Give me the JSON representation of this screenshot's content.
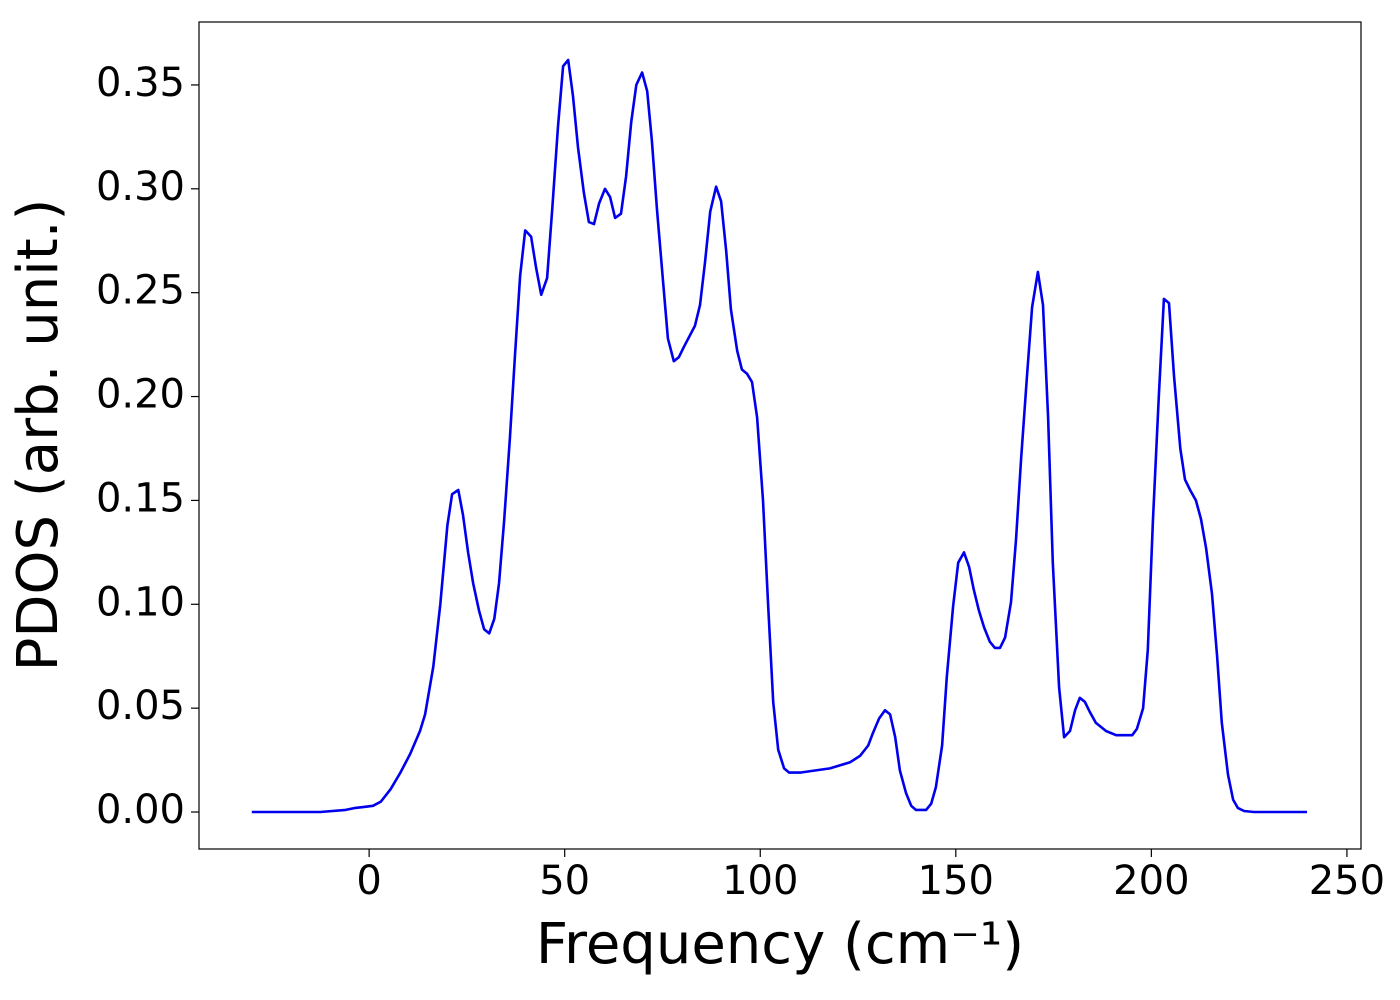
{
  "chart_data": {
    "type": "line",
    "xlabel": "Frequency (cm⁻¹)",
    "ylabel": "PDOS (arb. unit.)",
    "color": "#0000ee",
    "x": [
      -30,
      -12.5,
      -6,
      -3.5,
      -1,
      1,
      3,
      5.5,
      8,
      10.5,
      13,
      14.3,
      16.4,
      18.2,
      20,
      21.2,
      22.8,
      24,
      25.3,
      26.6,
      28.1,
      29.4,
      30.7,
      32,
      33.2,
      34.5,
      36,
      37.3,
      38.6,
      39.9,
      41.4,
      42.7,
      44,
      45.5,
      46.8,
      48.3,
      49.6,
      50.9,
      52.1,
      53.4,
      54.9,
      56.2,
      57.5,
      58.8,
      60.3,
      61.6,
      62.9,
      64.4,
      65.7,
      67,
      68.3,
      69.8,
      71.1,
      72.3,
      73.6,
      75.2,
      76.4,
      77.9,
      79.2,
      80.5,
      83.3,
      84.6,
      85.9,
      87.2,
      88.7,
      90,
      91.3,
      92.5,
      94.1,
      95.3,
      96.6,
      97.9,
      99.2,
      100.7,
      102,
      103.3,
      104.6,
      106.1,
      107.4,
      110.2,
      117.8,
      123,
      125.5,
      127.6,
      128.8,
      130.4,
      131.9,
      133.2,
      134.5,
      135.7,
      137.3,
      138.6,
      139.8,
      142.4,
      143.7,
      144.9,
      146.5,
      147.7,
      149.3,
      150.6,
      152.1,
      153.4,
      154.6,
      155.9,
      157.2,
      158.7,
      160,
      161.3,
      162.6,
      164.1,
      165.4,
      166.7,
      168.2,
      169.5,
      171,
      172.3,
      173.6,
      174.8,
      176.4,
      177.7,
      179.2,
      180.5,
      181.7,
      183,
      184.3,
      185.8,
      188.4,
      191,
      193.5,
      195.1,
      196.3,
      197.9,
      199.1,
      200.4,
      201.9,
      203.2,
      204.5,
      205.8,
      207.4,
      208.6,
      209.9,
      211.4,
      212.7,
      214,
      215.5,
      216.8,
      218,
      219.6,
      220.9,
      222.1,
      223.7,
      226.2,
      239.8
    ],
    "values": [
      0,
      0,
      0.001,
      0.002,
      0.0025,
      0.003,
      0.005,
      0.011,
      0.019,
      0.028,
      0.039,
      0.047,
      0.07,
      0.1,
      0.138,
      0.153,
      0.155,
      0.143,
      0.125,
      0.11,
      0.097,
      0.088,
      0.086,
      0.093,
      0.11,
      0.14,
      0.18,
      0.22,
      0.258,
      0.28,
      0.277,
      0.262,
      0.249,
      0.257,
      0.29,
      0.33,
      0.359,
      0.362,
      0.345,
      0.32,
      0.298,
      0.284,
      0.283,
      0.293,
      0.3,
      0.296,
      0.286,
      0.288,
      0.306,
      0.332,
      0.35,
      0.356,
      0.347,
      0.323,
      0.29,
      0.254,
      0.228,
      0.217,
      0.219,
      0.224,
      0.234,
      0.244,
      0.265,
      0.289,
      0.301,
      0.294,
      0.27,
      0.242,
      0.222,
      0.213,
      0.211,
      0.207,
      0.19,
      0.15,
      0.1,
      0.053,
      0.03,
      0.021,
      0.019,
      0.019,
      0.021,
      0.024,
      0.027,
      0.032,
      0.038,
      0.045,
      0.049,
      0.047,
      0.036,
      0.02,
      0.009,
      0.003,
      0.001,
      0.001,
      0.004,
      0.012,
      0.032,
      0.065,
      0.099,
      0.12,
      0.125,
      0.118,
      0.107,
      0.097,
      0.089,
      0.082,
      0.079,
      0.079,
      0.084,
      0.101,
      0.131,
      0.17,
      0.21,
      0.243,
      0.26,
      0.244,
      0.19,
      0.12,
      0.06,
      0.036,
      0.039,
      0.049,
      0.055,
      0.053,
      0.048,
      0.043,
      0.039,
      0.037,
      0.037,
      0.037,
      0.04,
      0.05,
      0.078,
      0.14,
      0.2,
      0.247,
      0.245,
      0.21,
      0.175,
      0.16,
      0.155,
      0.15,
      0.141,
      0.127,
      0.105,
      0.075,
      0.043,
      0.018,
      0.006,
      0.002,
      0.0005,
      0,
      0
    ],
    "xlim": [
      -43.5,
      253.6
    ],
    "ylim": [
      -0.0178,
      0.3803
    ],
    "xticks": [
      0,
      50,
      100,
      150,
      200,
      250
    ],
    "yticks": [
      {
        "value": 0,
        "label": "0.00"
      },
      {
        "value": 0.05,
        "label": "0.05"
      },
      {
        "value": 0.1,
        "label": "0.10"
      },
      {
        "value": 0.15,
        "label": "0.15"
      },
      {
        "value": 0.2,
        "label": "0.20"
      },
      {
        "value": 0.25,
        "label": "0.25"
      },
      {
        "value": 0.3,
        "label": "0.30"
      },
      {
        "value": 0.35,
        "label": "0.35"
      }
    ]
  }
}
